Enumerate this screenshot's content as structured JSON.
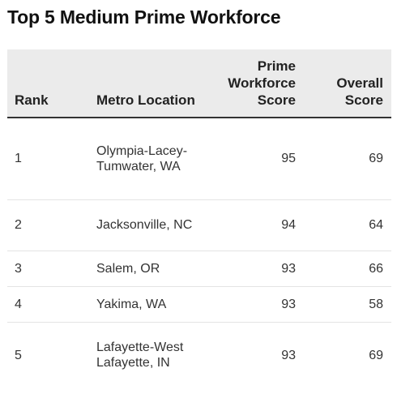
{
  "title": "Top 5 Medium Prime Workforce",
  "table": {
    "headers": {
      "rank": "Rank",
      "metro": "Metro Location",
      "prime": "Prime Workforce Score",
      "overall": "Overall Score"
    },
    "rows": [
      {
        "rank": "1",
        "metro": "Olympia-Lacey-Tumwater, WA",
        "prime": "95",
        "overall": "69"
      },
      {
        "rank": "2",
        "metro": "Jacksonville, NC",
        "prime": "94",
        "overall": "64"
      },
      {
        "rank": "3",
        "metro": "Salem, OR",
        "prime": "93",
        "overall": "66"
      },
      {
        "rank": "4",
        "metro": "Yakima, WA",
        "prime": "93",
        "overall": "58"
      },
      {
        "rank": "5",
        "metro": "Lafayette-West Lafayette, IN",
        "prime": "93",
        "overall": "69"
      }
    ]
  }
}
